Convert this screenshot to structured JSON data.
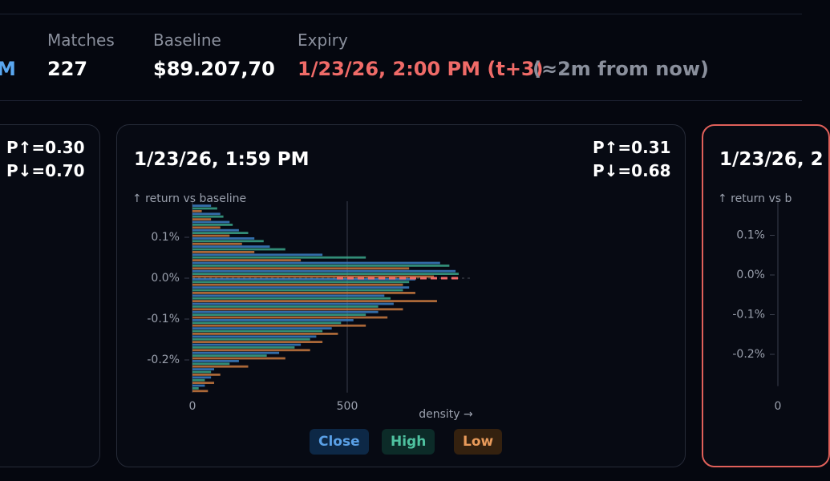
{
  "header": {
    "partial": "M",
    "stats": [
      {
        "label": "Matches",
        "value": "227"
      },
      {
        "label": "Baseline",
        "value": "$89.207,70"
      },
      {
        "label": "Expiry",
        "value": "1/23/26, 2:00 PM (t+3)",
        "note": "(≈2m from now)"
      }
    ]
  },
  "left_card": {
    "p_up": "P↑=0.30",
    "p_down": "P↓=0.70"
  },
  "chart_data": [
    {
      "type": "hbar-histogram",
      "title": "1/23/26, 1:59 PM",
      "p_up": "P↑=0.31",
      "p_down": "P↓=0.68",
      "ylabel": "↑ return vs baseline",
      "xlabel": "density →",
      "bins": [
        -0.28,
        -0.26,
        -0.24,
        -0.22,
        -0.2,
        -0.18,
        -0.16,
        -0.14,
        -0.12,
        -0.1,
        -0.08,
        -0.06,
        -0.04,
        -0.02,
        0,
        0.02,
        0.04,
        0.06,
        0.08,
        0.1,
        0.12,
        0.14,
        0.16,
        0.18
      ],
      "series": [
        {
          "name": "Close",
          "color": "#3b7fc4",
          "values": [
            40,
            60,
            70,
            150,
            280,
            350,
            400,
            450,
            520,
            600,
            650,
            620,
            700,
            720,
            850,
            800,
            420,
            250,
            200,
            150,
            120,
            90,
            60
          ]
        },
        {
          "name": "High",
          "color": "#3aa58a",
          "values": [
            20,
            40,
            60,
            120,
            240,
            330,
            380,
            420,
            480,
            560,
            600,
            640,
            680,
            700,
            860,
            830,
            560,
            300,
            230,
            180,
            130,
            100,
            80
          ]
        },
        {
          "name": "Low",
          "color": "#c8793f",
          "values": [
            50,
            70,
            90,
            180,
            300,
            380,
            420,
            470,
            560,
            630,
            680,
            790,
            720,
            680,
            780,
            700,
            350,
            200,
            160,
            120,
            90,
            60,
            30
          ]
        }
      ],
      "xlim": [
        0,
        900
      ],
      "xticks": [
        0,
        500
      ],
      "ylim": [
        -0.28,
        0.2
      ],
      "yticks": [
        {
          "value": 0.1,
          "label": "0.1%"
        },
        {
          "value": 0,
          "label": "0.0%"
        },
        {
          "value": -0.1,
          "label": "-0.1%"
        },
        {
          "value": -0.2,
          "label": "-0.2%"
        }
      ]
    },
    {
      "type": "hbar-histogram",
      "title": "1/23/26, 2",
      "ylabel": "↑ return vs b",
      "xlim": [
        0,
        900
      ],
      "xticks": [
        0
      ],
      "ylim": [
        -0.28,
        0.2
      ],
      "yticks": [
        {
          "value": 0.1,
          "label": "0.1%"
        },
        {
          "value": 0,
          "label": "0.0%"
        },
        {
          "value": -0.1,
          "label": "-0.1%"
        },
        {
          "value": -0.2,
          "label": "-0.2%"
        }
      ]
    }
  ]
}
